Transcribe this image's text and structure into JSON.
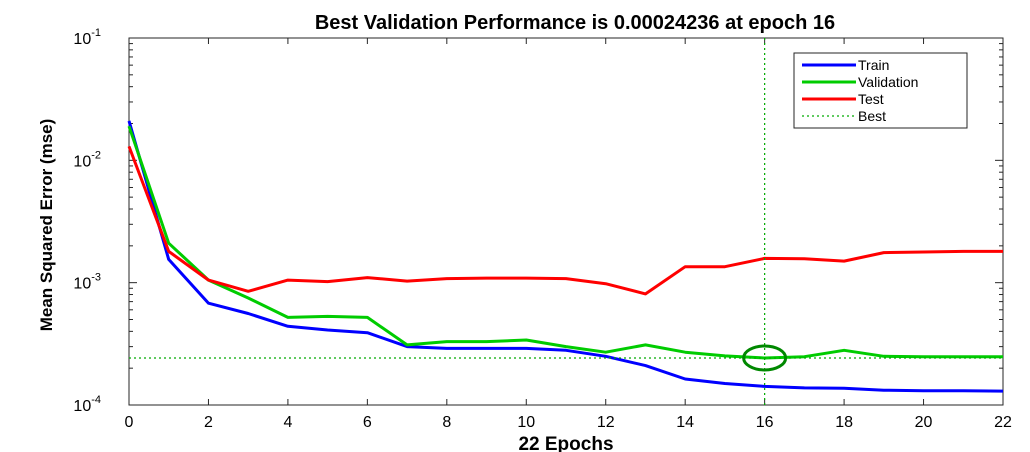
{
  "chart_data": {
    "type": "line",
    "title": "Best Validation Performance is 0.00024236 at epoch 16",
    "xlabel": "22 Epochs",
    "ylabel": "Mean Squared Error  (mse)",
    "xlim": [
      0,
      22
    ],
    "ylim": [
      0.0001,
      0.1
    ],
    "yscale": "log",
    "xticks": [
      "0",
      "2",
      "4",
      "6",
      "8",
      "10",
      "12",
      "14",
      "16",
      "18",
      "20",
      "22"
    ],
    "yticks": [
      {
        "base": "10",
        "exp": "-1",
        "value": 0.1
      },
      {
        "base": "10",
        "exp": "-2",
        "value": 0.01
      },
      {
        "base": "10",
        "exp": "-3",
        "value": 0.001
      },
      {
        "base": "10",
        "exp": "-4",
        "value": 0.0001
      }
    ],
    "grid": false,
    "legend_position": "top-right",
    "x": [
      0,
      1,
      2,
      3,
      4,
      5,
      6,
      7,
      8,
      9,
      10,
      11,
      12,
      13,
      14,
      15,
      16,
      17,
      18,
      19,
      20,
      21,
      22
    ],
    "series": [
      {
        "name": "Train",
        "color": "#0000ff",
        "values": [
          0.021,
          0.00155,
          0.00068,
          0.00056,
          0.00044,
          0.00041,
          0.00039,
          0.0003,
          0.00029,
          0.00029,
          0.00029,
          0.00028,
          0.00025,
          0.00021,
          0.000163,
          0.00015,
          0.000142,
          0.000138,
          0.000137,
          0.000132,
          0.000131,
          0.000131,
          0.00013
        ]
      },
      {
        "name": "Validation",
        "color": "#00cc00",
        "values": [
          0.019,
          0.0021,
          0.00105,
          0.00075,
          0.00052,
          0.00053,
          0.00052,
          0.00031,
          0.00033,
          0.00033,
          0.00034,
          0.0003,
          0.00027,
          0.00031,
          0.00027,
          0.000252,
          0.000242,
          0.000248,
          0.00028,
          0.00025,
          0.000248,
          0.000248,
          0.000248
        ]
      },
      {
        "name": "Test",
        "color": "#ff0000",
        "values": [
          0.013,
          0.0018,
          0.00105,
          0.00085,
          0.00105,
          0.00102,
          0.0011,
          0.00103,
          0.00108,
          0.00109,
          0.00109,
          0.00108,
          0.00098,
          0.00081,
          0.00135,
          0.00135,
          0.00158,
          0.00157,
          0.0015,
          0.00176,
          0.00178,
          0.0018,
          0.0018
        ]
      }
    ],
    "best": {
      "name": "Best",
      "color": "#00aa00",
      "epoch": 16,
      "value": 0.00024236
    }
  }
}
